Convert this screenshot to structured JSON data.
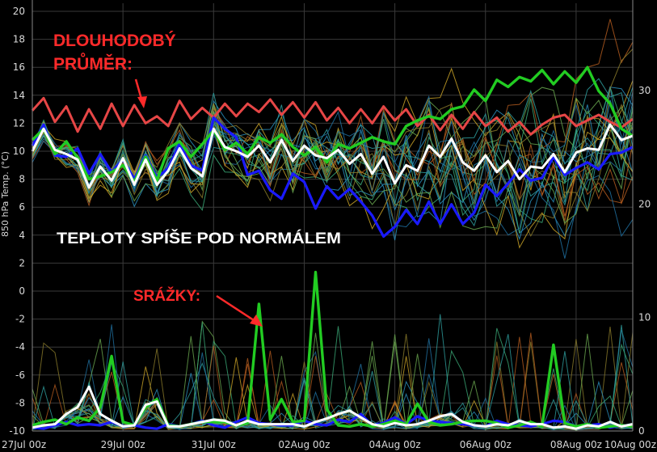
{
  "chart_data": {
    "type": "line",
    "title": "",
    "ylabel": "850 hPa Temp. (°C)",
    "y2label": "",
    "ylim": [
      -10,
      20
    ],
    "y2lim": [
      0,
      37
    ],
    "yticks": [
      20,
      18,
      16,
      14,
      12,
      10,
      8,
      6,
      4,
      2,
      0,
      -2,
      -4,
      -6,
      -8,
      -10
    ],
    "y2ticks": [
      30,
      20,
      10,
      0
    ],
    "xticks": [
      "27Jul 00z",
      "29Jul 00z",
      "31Jul 00z",
      "02Aug 00z",
      "04Aug 00z",
      "06Aug 00z",
      "08Aug 00z",
      "10Aug 00z"
    ],
    "x_step": "6h",
    "grid": true,
    "colors": {
      "climate_mean": "#e64646",
      "ensemble_mean": "#ffffff",
      "operational": "#1a1aff",
      "control": "#22cc22",
      "members": [
        "#2a8fbd",
        "#3aa876",
        "#c9a227",
        "#b25a1e",
        "#1f6f9f",
        "#6aa84f",
        "#2e9e9e",
        "#8a7a2a"
      ]
    },
    "series": [
      {
        "role": "climate_mean",
        "values": [
          12.9,
          13.8,
          12.1,
          13.2,
          11.4,
          13.0,
          11.6,
          13.4,
          11.8,
          13.3,
          12.0,
          12.5,
          11.8,
          13.6,
          12.3,
          13.1,
          12.4,
          13.4,
          12.5,
          13.4,
          12.8,
          13.7,
          12.6,
          13.5,
          12.4,
          13.5,
          12.2,
          13.1,
          12.0,
          13.0,
          12.0,
          13.2,
          12.2,
          13.0,
          11.8,
          12.6,
          11.5,
          12.6,
          11.6,
          12.8,
          11.8,
          12.4,
          11.4,
          12.1,
          11.2,
          11.9,
          12.4,
          12.6,
          11.8,
          12.2,
          12.6,
          12.1,
          11.7,
          12.3
        ]
      },
      {
        "role": "ensemble_mean",
        "values": [
          10.0,
          11.6,
          10.1,
          9.8,
          9.4,
          7.4,
          8.9,
          7.9,
          9.5,
          7.6,
          9.4,
          7.6,
          8.6,
          10.2,
          8.8,
          8.2,
          11.6,
          10.3,
          10.0,
          9.6,
          10.4,
          9.2,
          10.8,
          9.3,
          10.4,
          9.7,
          9.5,
          10.1,
          9.1,
          9.8,
          8.4,
          9.6,
          7.7,
          9.0,
          8.6,
          10.4,
          9.6,
          10.9,
          9.2,
          8.6,
          9.7,
          8.5,
          9.3,
          8.0,
          8.9,
          8.8,
          9.8,
          8.5,
          9.9,
          10.2,
          10.1,
          11.9,
          10.8,
          11.1
        ]
      },
      {
        "role": "operational",
        "values": [
          10.4,
          11.9,
          9.7,
          9.6,
          10.2,
          8.4,
          9.8,
          8.5,
          9.4,
          8.0,
          9.7,
          8.1,
          8.8,
          10.5,
          9.0,
          8.6,
          12.4,
          11.6,
          11.0,
          8.3,
          8.6,
          7.2,
          6.6,
          8.4,
          7.8,
          5.9,
          7.5,
          6.6,
          7.3,
          6.4,
          5.4,
          3.9,
          4.6,
          5.8,
          4.8,
          6.4,
          4.8,
          6.2,
          4.8,
          5.6,
          7.6,
          6.8,
          7.7,
          8.7,
          7.9,
          8.1,
          9.6,
          8.3,
          8.8,
          9.2,
          8.7,
          9.8,
          9.9,
          10.3
        ]
      },
      {
        "role": "control",
        "values": [
          10.8,
          11.6,
          9.8,
          10.7,
          9.5,
          8.0,
          8.2,
          8.5,
          9.0,
          7.8,
          9.6,
          7.9,
          10.2,
          10.7,
          9.6,
          10.5,
          11.5,
          10.1,
          10.6,
          9.8,
          11.0,
          10.6,
          11.2,
          10.3,
          9.7,
          10.3,
          9.2,
          10.5,
          10.2,
          10.6,
          11.0,
          10.7,
          10.5,
          11.8,
          12.2,
          12.5,
          12.3,
          13.0,
          13.2,
          14.4,
          13.6,
          15.1,
          14.6,
          15.3,
          15.0,
          15.8,
          14.8,
          15.7,
          14.9,
          16.0,
          14.3,
          13.4,
          11.6,
          11.1
        ]
      }
    ],
    "precip_series": [
      {
        "role": "ensemble_mean",
        "values": [
          0.3,
          0.5,
          0.6,
          1.5,
          2.1,
          3.9,
          1.5,
          0.9,
          0.4,
          0.5,
          2.3,
          2.6,
          0.4,
          0.4,
          0.6,
          0.8,
          1.0,
          0.9,
          0.5,
          0.9,
          0.6,
          0.6,
          0.6,
          0.6,
          0.4,
          0.8,
          1.1,
          1.5,
          1.8,
          1.2,
          0.6,
          0.4,
          0.7,
          0.5,
          0.6,
          0.9,
          1.3,
          1.5,
          0.8,
          0.5,
          0.4,
          0.6,
          0.5,
          0.9,
          0.6,
          0.6,
          0.3,
          0.4,
          0.2,
          0.5,
          0.4,
          0.8,
          0.4,
          0.6
        ]
      },
      {
        "role": "control",
        "values": [
          0.5,
          0.8,
          1.0,
          0.6,
          1.2,
          0.9,
          2.1,
          6.6,
          0.8,
          0.5,
          2.1,
          2.8,
          0.5,
          0.4,
          0.6,
          0.8,
          0.8,
          0.8,
          0.5,
          0.7,
          11.2,
          1.0,
          2.8,
          0.8,
          0.9,
          14.0,
          1.9,
          0.5,
          0.4,
          0.6,
          0.4,
          0.6,
          0.9,
          0.6,
          2.4,
          0.8,
          0.5,
          0.6,
          0.8,
          0.9,
          0.9,
          0.7,
          0.3,
          0.5,
          0.8,
          0.4,
          7.6,
          0.7,
          0.4,
          0.6,
          0.3,
          0.4,
          0.5,
          0.4
        ]
      },
      {
        "role": "operational",
        "values": [
          0.3,
          0.2,
          0.5,
          0.8,
          0.5,
          0.6,
          0.5,
          0.8,
          0.4,
          0.5,
          0.3,
          0.2,
          0.6,
          0.4,
          0.6,
          0.9,
          0.5,
          0.3,
          0.8,
          1.2,
          0.7,
          0.6,
          0.5,
          0.5,
          0.9,
          0.6,
          0.5,
          1.0,
          0.8,
          1.5,
          0.5,
          0.7,
          1.2,
          0.6,
          1.3,
          0.9,
          0.8,
          0.7,
          0.6,
          0.5,
          0.4,
          0.9,
          0.6,
          0.5,
          0.4,
          0.6,
          0.9,
          0.8,
          0.4,
          0.5,
          0.6,
          0.3,
          0.5,
          0.4
        ]
      }
    ],
    "annotations": {
      "climate": "DLOUHODOBÝ\nPRŮMĚR:",
      "temperature": "TEPLOTY SPÍŠE POD NORMÁLEM",
      "precip": "SRÁŽKY:"
    }
  }
}
